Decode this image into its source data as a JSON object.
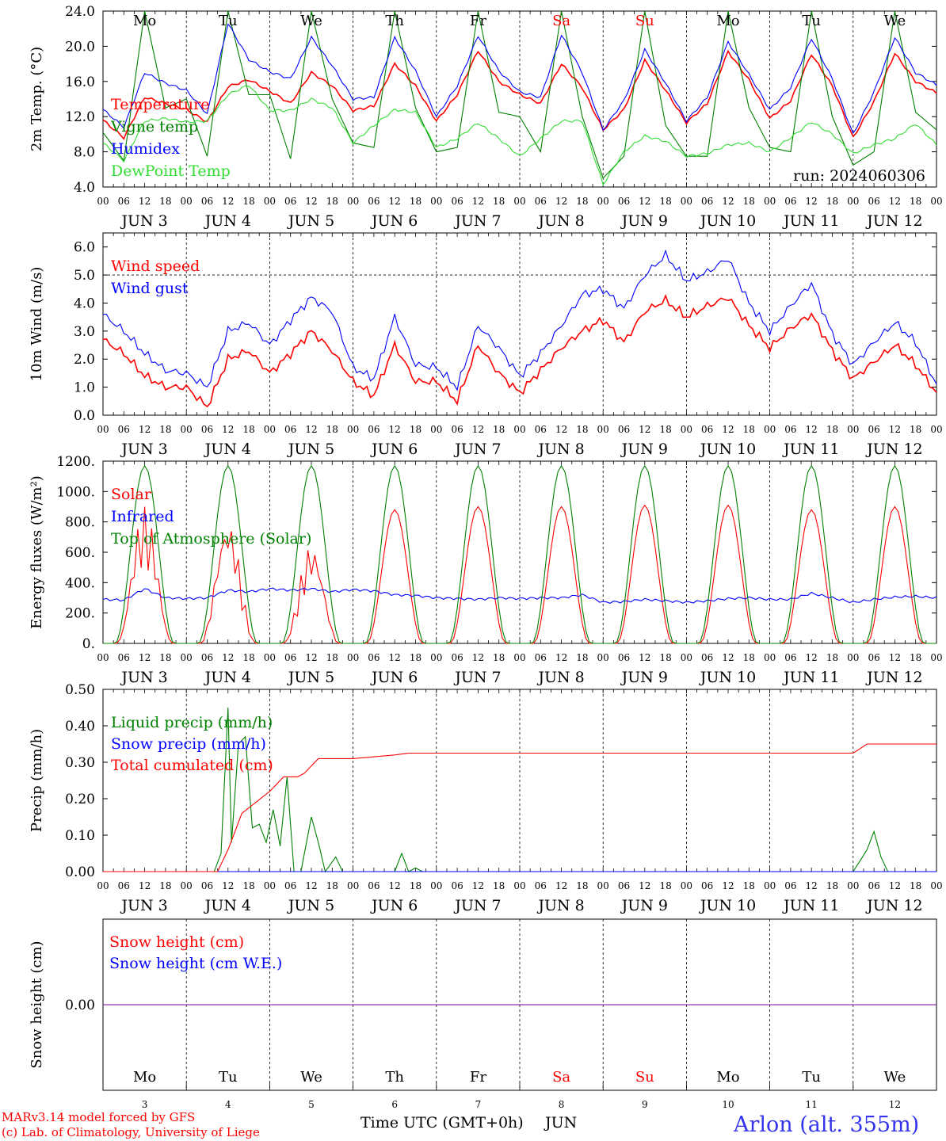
{
  "footer": {
    "credit1": "MARv3.14 model forced by GFS",
    "credit2": "(c) Lab. of Climatology, University of Liege",
    "xaxis_title": "Time UTC (GMT+0h)",
    "month": "JUN",
    "station": "Arlon (alt. 355m)"
  },
  "run_label": "run: 2024060306",
  "colors": {
    "red": "#ff0000",
    "green": "#008000",
    "blue": "#0000ff",
    "lightgreen": "#33dd33",
    "purple": "#8000a0",
    "weekend": "#ff0000"
  },
  "days": {
    "weekday": [
      "Mo",
      "Tu",
      "We",
      "Th",
      "Fr",
      "Sa",
      "Su",
      "Mo",
      "Tu",
      "We"
    ],
    "weekend": [
      false,
      false,
      false,
      false,
      false,
      true,
      true,
      false,
      false,
      false
    ],
    "date": [
      "3",
      "4",
      "5",
      "6",
      "7",
      "8",
      "9",
      "10",
      "11",
      "12"
    ],
    "day_labels": [
      "JUN   3",
      "JUN   4",
      "JUN   5",
      "JUN   6",
      "JUN   7",
      "JUN   8",
      "JUN   9",
      "JUN  10",
      "JUN  11",
      "JUN  12"
    ],
    "hour_labels": [
      "00",
      "06",
      "12",
      "18"
    ],
    "final_hour": "00"
  },
  "chart_data": [
    {
      "id": "temp",
      "type": "line",
      "ylabel": "2m Temp. (°C)",
      "ylim": [
        4,
        24
      ],
      "yticks": [
        "4.0",
        "8.0",
        "12.0",
        "16.0",
        "20.0",
        "24.0"
      ],
      "legend": [
        "Temperature",
        "Vigne temp",
        "Humidex",
        "DewPoint Temp"
      ],
      "x_unit": "hours since JUN 3 00 UTC",
      "series": [
        {
          "name": "Temperature",
          "color": "red",
          "x": [
            0,
            6,
            12,
            18,
            24,
            30,
            36,
            42,
            48,
            54,
            60,
            66,
            72,
            78,
            84,
            90,
            96,
            102,
            108,
            114,
            120,
            126,
            132,
            138,
            144,
            150,
            156,
            162,
            168,
            174,
            180,
            186,
            192,
            198,
            204,
            210,
            216,
            222,
            228,
            234,
            240
          ],
          "y": [
            11.6,
            9.6,
            14.2,
            13.5,
            12.8,
            11.4,
            15.4,
            16.2,
            14.9,
            13.5,
            17.0,
            15.5,
            12.7,
            13.2,
            18.0,
            15.5,
            11.5,
            14.5,
            19.5,
            16.0,
            14.5,
            13.5,
            18.0,
            15.3,
            10.5,
            12.8,
            18.4,
            15.0,
            11.3,
            13.5,
            19.4,
            16.2,
            11.8,
            13.8,
            19.1,
            15.5,
            9.6,
            13.7,
            19.2,
            16.0,
            14.7
          ]
        },
        {
          "name": "Vigne temp",
          "color": "green",
          "x": [
            0,
            6,
            12,
            18,
            24,
            30,
            36,
            42,
            48,
            54,
            60,
            66,
            72,
            78,
            84,
            90,
            96,
            102,
            108,
            114,
            120,
            126,
            132,
            138,
            144,
            150,
            156,
            162,
            168,
            174,
            180,
            186,
            192,
            198,
            204,
            210,
            216,
            222,
            228,
            234,
            240
          ],
          "y": [
            10.2,
            7.0,
            24.0,
            13.0,
            14.0,
            7.5,
            24.0,
            14.5,
            14.5,
            7.2,
            24.0,
            14.0,
            9.0,
            8.5,
            24.0,
            13.0,
            8.0,
            8.5,
            24.0,
            12.5,
            12.0,
            8.0,
            24.0,
            12.0,
            5.0,
            7.5,
            24.0,
            11.0,
            7.5,
            7.5,
            24.0,
            13.0,
            8.5,
            8.0,
            24.0,
            12.0,
            6.5,
            8.0,
            24.0,
            12.5,
            10.5
          ]
        },
        {
          "name": "Humidex",
          "color": "blue",
          "x": [
            0,
            6,
            12,
            18,
            24,
            30,
            36,
            42,
            48,
            54,
            60,
            66,
            72,
            78,
            84,
            90,
            96,
            102,
            108,
            114,
            120,
            126,
            132,
            138,
            144,
            150,
            156,
            162,
            168,
            174,
            180,
            186,
            192,
            198,
            204,
            210,
            216,
            222,
            228,
            234,
            240
          ],
          "y": [
            12.8,
            10.8,
            17.0,
            15.8,
            15.0,
            12.3,
            22.6,
            18.5,
            17.1,
            16.3,
            21.0,
            17.8,
            14.0,
            14.2,
            21.0,
            17.2,
            12.0,
            15.5,
            21.2,
            17.2,
            14.8,
            14.2,
            21.3,
            17.0,
            10.5,
            13.8,
            19.6,
            15.8,
            11.5,
            14.2,
            20.5,
            16.8,
            12.8,
            15.3,
            20.9,
            16.3,
            10.0,
            14.8,
            21.0,
            17.0,
            15.6
          ]
        },
        {
          "name": "DewPoint Temp",
          "color": "lightgreen",
          "x": [
            0,
            6,
            12,
            18,
            24,
            30,
            36,
            42,
            48,
            54,
            60,
            66,
            72,
            78,
            84,
            90,
            96,
            102,
            108,
            114,
            120,
            126,
            132,
            138,
            144,
            150,
            156,
            162,
            168,
            174,
            180,
            186,
            192,
            198,
            204,
            210,
            216,
            222,
            228,
            234,
            240
          ],
          "y": [
            9.0,
            7.0,
            11.5,
            11.8,
            11.4,
            11.5,
            14.5,
            15.6,
            12.7,
            12.7,
            14.0,
            13.0,
            9.0,
            11.0,
            12.8,
            12.5,
            8.5,
            9.5,
            11.3,
            9.5,
            7.5,
            9.5,
            11.5,
            11.5,
            4.3,
            8.0,
            9.8,
            9.2,
            7.5,
            7.8,
            8.8,
            9.0,
            8.0,
            9.6,
            11.4,
            10.0,
            7.8,
            8.8,
            9.5,
            11.2,
            8.8
          ]
        }
      ]
    },
    {
      "id": "wind",
      "type": "line",
      "ylabel": "10m Wind (m/s)",
      "ylim": [
        0,
        6.5
      ],
      "yticks": [
        "0.0",
        "1.0",
        "2.0",
        "3.0",
        "4.0",
        "5.0",
        "6.0"
      ],
      "legend": [
        "Wind speed",
        "Wind gust"
      ],
      "x_unit": "hours since JUN 3 00 UTC",
      "series": [
        {
          "name": "Wind speed",
          "color": "red",
          "x": [
            0,
            6,
            12,
            18,
            24,
            30,
            36,
            42,
            48,
            54,
            60,
            66,
            72,
            78,
            84,
            90,
            96,
            102,
            108,
            114,
            120,
            126,
            132,
            138,
            144,
            150,
            156,
            162,
            168,
            174,
            180,
            186,
            192,
            198,
            204,
            210,
            216,
            222,
            228,
            234,
            240
          ],
          "y": [
            2.7,
            2.2,
            1.4,
            1.0,
            1.0,
            0.3,
            2.0,
            2.3,
            1.5,
            2.2,
            3.0,
            2.3,
            1.2,
            0.7,
            2.5,
            1.2,
            1.2,
            0.5,
            2.5,
            1.5,
            0.8,
            1.6,
            2.4,
            3.0,
            3.4,
            2.6,
            3.7,
            4.1,
            3.5,
            3.9,
            4.2,
            3.2,
            2.4,
            3.1,
            3.6,
            2.3,
            1.3,
            1.9,
            2.5,
            1.8,
            0.8
          ]
        },
        {
          "name": "Wind gust",
          "color": "blue",
          "x": [
            0,
            6,
            12,
            18,
            24,
            30,
            36,
            42,
            48,
            54,
            60,
            66,
            72,
            78,
            84,
            90,
            96,
            102,
            108,
            114,
            120,
            126,
            132,
            138,
            144,
            150,
            156,
            162,
            168,
            174,
            180,
            186,
            192,
            198,
            204,
            210,
            216,
            222,
            228,
            234,
            240
          ],
          "y": [
            3.6,
            3.0,
            2.2,
            1.6,
            1.5,
            1.0,
            3.0,
            3.3,
            2.5,
            3.4,
            4.2,
            3.7,
            1.7,
            1.3,
            3.5,
            1.8,
            1.7,
            1.0,
            3.2,
            2.4,
            1.4,
            2.2,
            3.2,
            4.3,
            4.5,
            3.8,
            5.0,
            5.7,
            4.8,
            5.1,
            5.6,
            4.0,
            3.0,
            3.9,
            4.7,
            2.9,
            1.8,
            2.6,
            3.3,
            2.6,
            1.1
          ]
        }
      ],
      "reference_line": 5.0
    },
    {
      "id": "energy",
      "type": "line",
      "ylabel": "Energy fluxes (W/m²)",
      "ylim": [
        0,
        1200
      ],
      "yticks": [
        "0.",
        "200.",
        "400.",
        "600.",
        "800.",
        "1000.",
        "1200."
      ],
      "legend": [
        "Solar",
        "Infrared",
        "Top of Atmosphere (Solar)"
      ],
      "x_unit": "hours since JUN 3 00 UTC",
      "series": [
        {
          "name": "Solar",
          "color": "red",
          "daily_peaks": [
            900,
            810,
            650,
            880,
            900,
            900,
            910,
            910,
            880,
            900
          ],
          "x": [],
          "y": []
        },
        {
          "name": "Infrared",
          "color": "blue",
          "x": [
            0,
            6,
            12,
            18,
            24,
            30,
            36,
            42,
            48,
            54,
            60,
            66,
            72,
            78,
            84,
            90,
            96,
            102,
            108,
            114,
            120,
            126,
            132,
            138,
            144,
            150,
            156,
            162,
            168,
            174,
            180,
            186,
            192,
            198,
            204,
            210,
            216,
            222,
            228,
            234,
            240
          ],
          "y": [
            290,
            285,
            360,
            300,
            295,
            300,
            350,
            340,
            360,
            350,
            360,
            340,
            355,
            345,
            320,
            315,
            300,
            295,
            290,
            300,
            295,
            300,
            300,
            320,
            270,
            275,
            290,
            280,
            270,
            280,
            295,
            300,
            290,
            290,
            330,
            300,
            270,
            290,
            305,
            310,
            300
          ]
        },
        {
          "name": "Top of Atmosphere (Solar)",
          "color": "green",
          "daily_peaks": [
            1170,
            1170,
            1170,
            1170,
            1170,
            1170,
            1170,
            1170,
            1170,
            1170
          ],
          "x": [],
          "y": []
        }
      ]
    },
    {
      "id": "precip",
      "type": "line",
      "ylabel": "Precip (mm/h)",
      "ylim": [
        0,
        0.5
      ],
      "yticks": [
        "0.00",
        "0.10",
        "0.20",
        "0.30",
        "0.40",
        "0.50"
      ],
      "legend": [
        "Liquid precip (mm/h)",
        "Snow precip (mm/h)",
        "Total cumulated (cm)"
      ],
      "x_unit": "hours since JUN 3 00 UTC",
      "series": [
        {
          "name": "Liquid precip (mm/h)",
          "color": "green",
          "x": [
            0,
            30,
            32,
            34,
            36,
            37,
            39,
            41,
            43,
            45,
            47,
            49,
            51,
            53,
            55,
            57,
            60,
            62,
            64,
            67,
            69,
            72,
            84,
            86,
            88,
            90,
            92,
            96,
            216,
            218,
            220,
            222,
            224,
            226,
            240
          ],
          "y": [
            0,
            0,
            0,
            0.05,
            0.45,
            0.08,
            0.35,
            0.37,
            0.12,
            0.13,
            0.08,
            0.17,
            0.07,
            0.26,
            0.0,
            0.0,
            0.15,
            0.08,
            0.0,
            0.04,
            0.0,
            0.0,
            0.0,
            0.05,
            0.0,
            0.01,
            0.0,
            0.0,
            0.0,
            0.03,
            0.06,
            0.11,
            0.04,
            0.0,
            0.0
          ]
        },
        {
          "name": "Snow precip (mm/h)",
          "color": "blue",
          "x": [
            0,
            240
          ],
          "y": [
            0,
            0
          ]
        },
        {
          "name": "Total cumulated (cm)",
          "color": "red",
          "x": [
            0,
            30,
            33,
            36,
            40,
            44,
            48,
            52,
            54,
            56,
            58,
            62,
            66,
            72,
            84,
            88,
            96,
            216,
            220,
            240
          ],
          "y": [
            0,
            0,
            0.0,
            0.06,
            0.16,
            0.19,
            0.22,
            0.26,
            0.26,
            0.26,
            0.27,
            0.31,
            0.31,
            0.31,
            0.32,
            0.325,
            0.325,
            0.325,
            0.35,
            0.35
          ]
        }
      ]
    },
    {
      "id": "snow",
      "type": "line",
      "ylabel": "Snow height (cm)",
      "ylim": [
        -1,
        1
      ],
      "yticks": [
        "0.00"
      ],
      "legend": [
        "Snow height (cm)",
        "Snow height (cm W.E.)"
      ],
      "x_unit": "hours since JUN 3 00 UTC",
      "series": [
        {
          "name": "Snow height (cm)",
          "color": "purple",
          "x": [
            0,
            240
          ],
          "y": [
            0,
            0
          ]
        }
      ]
    }
  ]
}
